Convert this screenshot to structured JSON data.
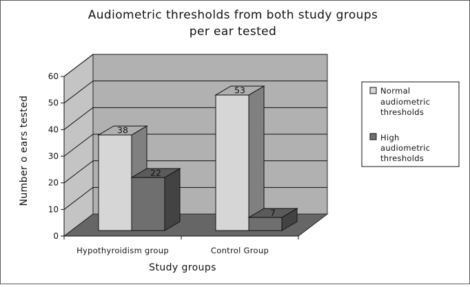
{
  "colors": {
    "normal": "#d6d6d6",
    "high": "#6f6f6f",
    "wall": "#b1b1b1",
    "floor": "#666666"
  },
  "chart_data": {
    "type": "bar",
    "title_lines": [
      "Audiometric thresholds from both study groups",
      "per ear tested"
    ],
    "xlabel": "Study groups",
    "ylabel": "Number o ears tested",
    "categories": [
      "Hypothyroidism group",
      "Control Group"
    ],
    "series": [
      {
        "name": "Normal audiometric thresholds",
        "legend_lines": [
          "Normal",
          "audiometric",
          "thresholds"
        ],
        "values": [
          38,
          53
        ]
      },
      {
        "name": "High audiometric thresholds",
        "legend_lines": [
          "High",
          "audiometric",
          "thresholds"
        ],
        "values": [
          22,
          7
        ]
      }
    ],
    "ylim": [
      0,
      60
    ],
    "yticks": [
      0,
      10,
      20,
      30,
      40,
      50,
      60
    ],
    "grid": true,
    "legend_position": "right",
    "style": "3d-column"
  }
}
